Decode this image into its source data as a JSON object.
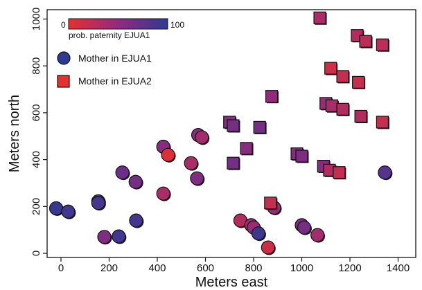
{
  "chart_data": {
    "type": "scatter",
    "xlabel": "Meters east",
    "ylabel": "Meters north",
    "xlim": [
      -100,
      1400
    ],
    "ylim": [
      -20,
      1040
    ],
    "xticks": [
      0,
      200,
      400,
      600,
      800,
      1000,
      1200,
      1400
    ],
    "yticks": [
      0,
      200,
      400,
      600,
      800,
      1000
    ],
    "tick_labels_x": [
      "0",
      "200",
      "400",
      "600",
      "800",
      "1000",
      "1200",
      "1400"
    ],
    "tick_labels_y": [
      "0",
      "200",
      "400",
      "600",
      "800",
      "1000"
    ],
    "grid": false,
    "colorbar": {
      "min_label": "0",
      "max_label": "100",
      "label": "prob. paternity EJUA1",
      "low_color": "#e53030",
      "high_color": "#2e3a93"
    },
    "legend": {
      "placement": "top-left",
      "entries": [
        {
          "label": "Mother in EJUA1",
          "marker": "circle",
          "color": "#2e3a93"
        },
        {
          "label": "Mother in EJUA2",
          "marker": "square",
          "color": "#e53030"
        }
      ]
    },
    "series": [
      {
        "name": "Mother in EJUA1",
        "marker": "circle",
        "points": [
          {
            "x": -20,
            "y": 192,
            "p": 95
          },
          {
            "x": 30,
            "y": 178,
            "p": 90
          },
          {
            "x": 155,
            "y": 222,
            "p": 92
          },
          {
            "x": 155,
            "y": 215,
            "p": 88
          },
          {
            "x": 180,
            "y": 70,
            "p": 60
          },
          {
            "x": 240,
            "y": 72,
            "p": 90
          },
          {
            "x": 255,
            "y": 345,
            "p": 70
          },
          {
            "x": 310,
            "y": 305,
            "p": 65
          },
          {
            "x": 312,
            "y": 140,
            "p": 88
          },
          {
            "x": 425,
            "y": 455,
            "p": 55
          },
          {
            "x": 425,
            "y": 255,
            "p": 35
          },
          {
            "x": 445,
            "y": 420,
            "p": 5
          },
          {
            "x": 540,
            "y": 385,
            "p": 35
          },
          {
            "x": 565,
            "y": 320,
            "p": 60
          },
          {
            "x": 570,
            "y": 505,
            "p": 55
          },
          {
            "x": 585,
            "y": 495,
            "p": 40
          },
          {
            "x": 745,
            "y": 140,
            "p": 30
          },
          {
            "x": 790,
            "y": 120,
            "p": 40
          },
          {
            "x": 800,
            "y": 110,
            "p": 45
          },
          {
            "x": 820,
            "y": 85,
            "p": 92
          },
          {
            "x": 860,
            "y": 25,
            "p": 15
          },
          {
            "x": 885,
            "y": 195,
            "p": 45
          },
          {
            "x": 1000,
            "y": 120,
            "p": 55
          },
          {
            "x": 1010,
            "y": 110,
            "p": 65
          },
          {
            "x": 1065,
            "y": 78,
            "p": 40
          },
          {
            "x": 1345,
            "y": 345,
            "p": 80
          }
        ]
      },
      {
        "name": "Mother in EJUA2",
        "marker": "square",
        "points": [
          {
            "x": 700,
            "y": 560,
            "p": 55
          },
          {
            "x": 715,
            "y": 545,
            "p": 65
          },
          {
            "x": 715,
            "y": 385,
            "p": 65
          },
          {
            "x": 770,
            "y": 448,
            "p": 55
          },
          {
            "x": 825,
            "y": 538,
            "p": 65
          },
          {
            "x": 870,
            "y": 215,
            "p": 20
          },
          {
            "x": 875,
            "y": 670,
            "p": 50
          },
          {
            "x": 980,
            "y": 425,
            "p": 55
          },
          {
            "x": 1000,
            "y": 415,
            "p": 60
          },
          {
            "x": 1075,
            "y": 1005,
            "p": 35
          },
          {
            "x": 1090,
            "y": 372,
            "p": 55
          },
          {
            "x": 1100,
            "y": 640,
            "p": 45
          },
          {
            "x": 1115,
            "y": 355,
            "p": 30
          },
          {
            "x": 1120,
            "y": 790,
            "p": 15
          },
          {
            "x": 1125,
            "y": 630,
            "p": 35
          },
          {
            "x": 1155,
            "y": 345,
            "p": 20
          },
          {
            "x": 1170,
            "y": 615,
            "p": 30
          },
          {
            "x": 1170,
            "y": 755,
            "p": 20
          },
          {
            "x": 1230,
            "y": 930,
            "p": 30
          },
          {
            "x": 1235,
            "y": 730,
            "p": 20
          },
          {
            "x": 1245,
            "y": 585,
            "p": 30
          },
          {
            "x": 1265,
            "y": 905,
            "p": 25
          },
          {
            "x": 1335,
            "y": 560,
            "p": 20
          },
          {
            "x": 1335,
            "y": 890,
            "p": 25
          }
        ]
      }
    ]
  }
}
